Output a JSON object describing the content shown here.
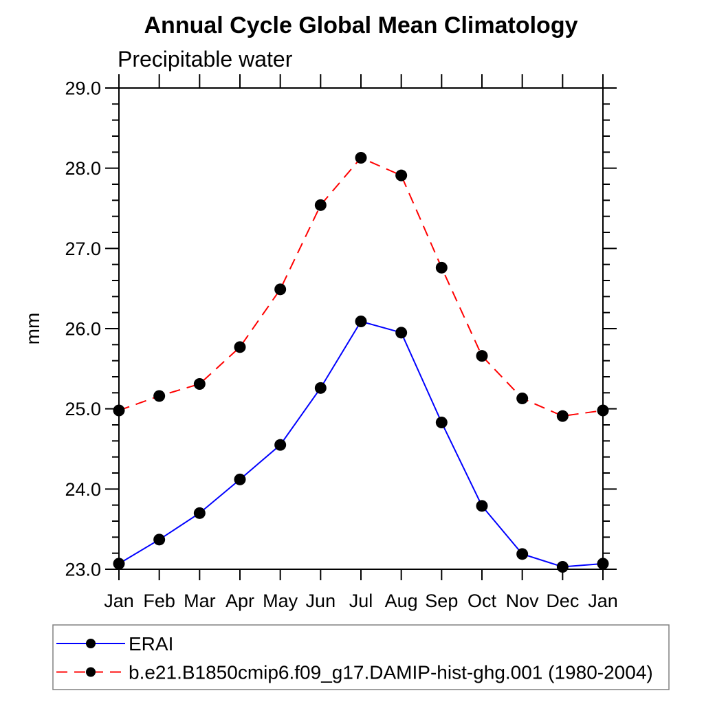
{
  "chart_data": {
    "type": "line",
    "title": "Annual Cycle Global Mean Climatology",
    "subtitle": "Precipitable water",
    "ylabel": "mm",
    "categories": [
      "Jan",
      "Feb",
      "Mar",
      "Apr",
      "May",
      "Jun",
      "Jul",
      "Aug",
      "Sep",
      "Oct",
      "Nov",
      "Dec",
      "Jan"
    ],
    "series": [
      {
        "name": "ERAI",
        "line_style": "solid",
        "line_color": "#0000ff",
        "marker": "filled-circle",
        "marker_color": "#000000",
        "values": [
          23.07,
          23.37,
          23.7,
          24.12,
          24.55,
          25.26,
          26.09,
          25.95,
          24.83,
          23.79,
          23.19,
          23.03,
          23.07
        ]
      },
      {
        "name": "b.e21.B1850cmip6.f09_g17.DAMIP-hist-ghg.001 (1980-2004)",
        "line_style": "dashed",
        "line_color": "#ff0000",
        "marker": "filled-circle",
        "marker_color": "#000000",
        "values": [
          24.98,
          25.16,
          25.31,
          25.77,
          26.49,
          27.54,
          28.13,
          27.91,
          26.76,
          25.66,
          25.13,
          24.91,
          24.98
        ]
      }
    ],
    "ylim": [
      23.0,
      29.0
    ],
    "y_major_step": 1.0,
    "y_minor_step": 0.2,
    "y_tick_labels": [
      "23.0",
      "24.0",
      "25.0",
      "26.0",
      "27.0",
      "28.0",
      "29.0"
    ],
    "grid": false,
    "frame": "box-with-outward-ticks-all-sides",
    "legend_position": "bottom-left-box",
    "axis_color": "#000000",
    "background_color": "#ffffff"
  }
}
